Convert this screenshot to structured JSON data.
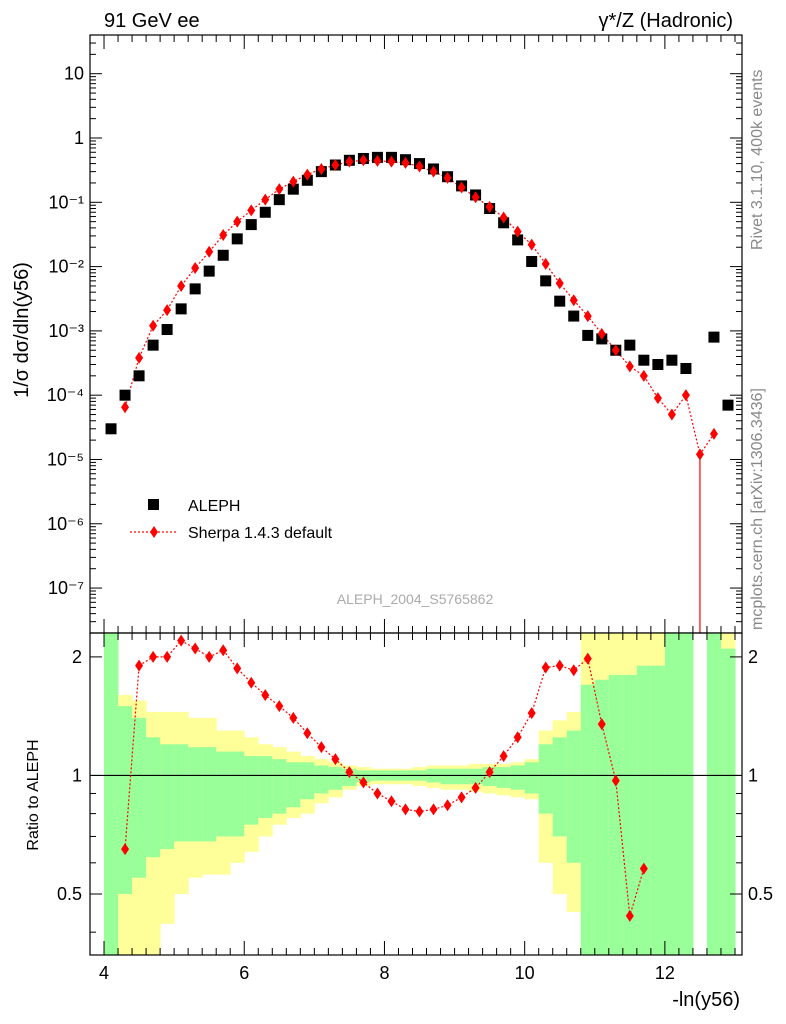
{
  "header": {
    "left": "91 GeV ee",
    "right": "γ*/Z (Hadronic)"
  },
  "side_labels": {
    "rivet": "Rivet 3.1.10,  400k events",
    "mcplots": "mcplots.cern.ch [arXiv:1306.3436]"
  },
  "watermark": "ALEPH_2004_S5765862",
  "colors": {
    "data": "#000000",
    "mc": "#ff0000",
    "band_inner": "#99ff99",
    "band_outer": "#ffff99"
  },
  "chart_data": [
    {
      "type": "scatter",
      "panel": "main",
      "ylabel": "1/σ  dσ/dln(y56)",
      "yscale": "log",
      "ylim": [
        2e-08,
        40
      ],
      "xlim": [
        3.8,
        13.1
      ],
      "y_ticks": [
        "10",
        "1",
        "10⁻¹",
        "10⁻²",
        "10⁻³",
        "10⁻⁴",
        "10⁻⁵",
        "10⁻⁶",
        "10⁻⁷"
      ],
      "legend": {
        "position": "bottom-left",
        "entries": [
          "ALEPH",
          "Sherpa 1.4.3 default"
        ]
      },
      "series": [
        {
          "name": "ALEPH",
          "marker": "square",
          "x": [
            4.1,
            4.3,
            4.5,
            4.7,
            4.9,
            5.1,
            5.3,
            5.5,
            5.7,
            5.9,
            6.1,
            6.3,
            6.5,
            6.7,
            6.9,
            7.1,
            7.3,
            7.5,
            7.7,
            7.9,
            8.1,
            8.3,
            8.5,
            8.7,
            8.9,
            9.1,
            9.3,
            9.5,
            9.7,
            9.9,
            10.1,
            10.3,
            10.5,
            10.7,
            10.9,
            11.1,
            11.3,
            11.5,
            11.7,
            11.9,
            12.1,
            12.3,
            12.7,
            12.9
          ],
          "y": [
            3e-05,
            0.0001,
            0.0002,
            0.0006,
            0.00105,
            0.0022,
            0.0045,
            0.0085,
            0.015,
            0.027,
            0.045,
            0.07,
            0.11,
            0.16,
            0.22,
            0.3,
            0.38,
            0.45,
            0.48,
            0.5,
            0.5,
            0.46,
            0.4,
            0.33,
            0.25,
            0.18,
            0.13,
            0.08,
            0.048,
            0.026,
            0.012,
            0.006,
            0.0029,
            0.0017,
            0.00085,
            0.00075,
            0.0005,
            0.0006,
            0.00035,
            0.0003,
            0.00035,
            0.00026,
            0.0008,
            7e-05
          ]
        },
        {
          "name": "Sherpa 1.4.3 default",
          "marker": "diamond",
          "line": "dotted",
          "x": [
            4.3,
            4.5,
            4.7,
            4.9,
            5.1,
            5.3,
            5.5,
            5.7,
            5.9,
            6.1,
            6.3,
            6.5,
            6.7,
            6.9,
            7.1,
            7.3,
            7.5,
            7.7,
            7.9,
            8.1,
            8.3,
            8.5,
            8.7,
            8.9,
            9.1,
            9.3,
            9.5,
            9.7,
            9.9,
            10.1,
            10.3,
            10.5,
            10.7,
            10.9,
            11.1,
            11.3,
            11.5,
            11.7,
            11.9,
            12.1,
            12.3,
            12.5,
            12.7
          ],
          "y": [
            6.5e-05,
            0.00038,
            0.0012,
            0.0021,
            0.005,
            0.0095,
            0.017,
            0.031,
            0.05,
            0.075,
            0.11,
            0.16,
            0.21,
            0.27,
            0.33,
            0.38,
            0.43,
            0.45,
            0.44,
            0.43,
            0.41,
            0.36,
            0.3,
            0.24,
            0.17,
            0.12,
            0.085,
            0.058,
            0.035,
            0.022,
            0.011,
            0.0055,
            0.003,
            0.0017,
            0.0009,
            0.0005,
            0.00028,
            0.0002,
            9e-05,
            5e-05,
            0.0001,
            1.2e-05,
            2.5e-05
          ]
        }
      ]
    },
    {
      "type": "scatter",
      "panel": "ratio",
      "xlabel": "-ln(y56)",
      "ylabel": "Ratio to ALEPH",
      "ylim": [
        0.35,
        2.3
      ],
      "xlim": [
        3.8,
        13.1
      ],
      "x_ticks": [
        "4",
        "6",
        "8",
        "10",
        "12"
      ],
      "y_ticks": [
        "0.5",
        "1",
        "2"
      ],
      "bands": {
        "edges": [
          4.0,
          4.2,
          4.4,
          4.6,
          4.8,
          5.0,
          5.2,
          5.4,
          5.6,
          5.8,
          6.0,
          6.2,
          6.4,
          6.6,
          6.8,
          7.0,
          7.2,
          7.4,
          7.6,
          7.8,
          8.0,
          8.2,
          8.4,
          8.6,
          8.8,
          9.0,
          9.2,
          9.4,
          9.6,
          9.8,
          10.0,
          10.2,
          10.4,
          10.6,
          10.8,
          11.0,
          11.2,
          11.4,
          11.6,
          11.8,
          12.0,
          12.2,
          12.4,
          12.6,
          12.8,
          13.0
        ],
        "inner_hi": [
          2.3,
          1.5,
          1.4,
          1.25,
          1.2,
          1.2,
          1.18,
          1.18,
          1.15,
          1.15,
          1.12,
          1.12,
          1.1,
          1.08,
          1.08,
          1.06,
          1.05,
          1.04,
          1.03,
          1.03,
          1.03,
          1.03,
          1.03,
          1.04,
          1.04,
          1.04,
          1.04,
          1.05,
          1.05,
          1.06,
          1.08,
          1.2,
          1.25,
          1.3,
          1.7,
          1.75,
          1.8,
          1.8,
          1.9,
          1.9,
          2.3,
          2.3,
          null,
          2.3,
          2.1
        ],
        "inner_lo": [
          0.35,
          0.5,
          0.55,
          0.62,
          0.65,
          0.68,
          0.68,
          0.68,
          0.7,
          0.7,
          0.75,
          0.78,
          0.8,
          0.83,
          0.87,
          0.9,
          0.92,
          0.94,
          0.96,
          0.97,
          0.97,
          0.97,
          0.97,
          0.96,
          0.95,
          0.95,
          0.95,
          0.94,
          0.93,
          0.92,
          0.9,
          0.8,
          0.7,
          0.6,
          0.35,
          0.35,
          0.35,
          0.35,
          0.35,
          0.35,
          0.35,
          0.35,
          null,
          0.35,
          0.35
        ],
        "outer_hi": [
          2.3,
          1.6,
          1.55,
          1.45,
          1.45,
          1.45,
          1.4,
          1.4,
          1.3,
          1.3,
          1.25,
          1.2,
          1.18,
          1.15,
          1.12,
          1.1,
          1.08,
          1.06,
          1.05,
          1.04,
          1.04,
          1.04,
          1.05,
          1.06,
          1.06,
          1.06,
          1.07,
          1.07,
          1.07,
          1.08,
          1.1,
          1.3,
          1.38,
          1.45,
          2.3,
          2.3,
          2.3,
          2.3,
          2.3,
          2.3,
          2.3,
          2.3,
          null,
          2.3,
          2.3
        ],
        "outer_lo": [
          0.35,
          0.35,
          0.35,
          0.35,
          0.42,
          0.5,
          0.55,
          0.56,
          0.56,
          0.6,
          0.64,
          0.7,
          0.75,
          0.78,
          0.8,
          0.85,
          0.88,
          0.92,
          0.94,
          0.95,
          0.95,
          0.95,
          0.94,
          0.93,
          0.92,
          0.92,
          0.91,
          0.9,
          0.89,
          0.88,
          0.87,
          0.6,
          0.5,
          0.45,
          0.35,
          0.35,
          0.35,
          0.35,
          0.35,
          0.35,
          0.35,
          0.35,
          null,
          0.35,
          0.35
        ]
      },
      "series": [
        {
          "name": "Sherpa 1.4.3 default",
          "marker": "diamond",
          "line": "dotted",
          "x": [
            4.3,
            4.5,
            4.7,
            4.9,
            5.1,
            5.3,
            5.5,
            5.7,
            5.9,
            6.1,
            6.3,
            6.5,
            6.7,
            6.9,
            7.1,
            7.3,
            7.5,
            7.7,
            7.9,
            8.1,
            8.3,
            8.5,
            8.7,
            8.9,
            9.1,
            9.3,
            9.5,
            9.7,
            9.9,
            10.1,
            10.3,
            10.5,
            10.7,
            10.9,
            11.1,
            11.3,
            11.5,
            11.7
          ],
          "y": [
            0.65,
            1.9,
            2.0,
            2.0,
            2.2,
            2.1,
            2.0,
            2.08,
            1.87,
            1.72,
            1.6,
            1.5,
            1.4,
            1.28,
            1.18,
            1.1,
            1.02,
            0.96,
            0.9,
            0.86,
            0.82,
            0.81,
            0.82,
            0.84,
            0.88,
            0.93,
            1.02,
            1.12,
            1.25,
            1.44,
            1.88,
            1.9,
            1.85,
            1.98,
            1.35,
            0.97,
            0.44,
            0.58
          ]
        }
      ]
    }
  ]
}
